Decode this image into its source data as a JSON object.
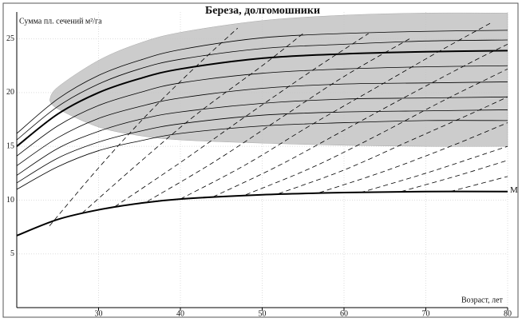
{
  "chart_data": {
    "type": "line",
    "title": "Береза, долгомошники",
    "y_label": "Сумма пл. сечений м²/га",
    "x_label": "Возраст, лет",
    "xlim": [
      20,
      80
    ],
    "ylim": [
      0,
      27.5
    ],
    "xticks": [
      30,
      40,
      50,
      60,
      70,
      80
    ],
    "yticks": [
      5,
      10,
      15,
      20,
      25
    ],
    "grid": true,
    "band": {
      "color": "#c4c4c4",
      "x": [
        24,
        25,
        30,
        35,
        40,
        50,
        60,
        70,
        80
      ],
      "upper": [
        19.3,
        20.5,
        23.0,
        24.6,
        25.6,
        26.7,
        27.2,
        27.4,
        27.4
      ],
      "lower": [
        19.3,
        18.5,
        16.8,
        16.0,
        15.6,
        15.3,
        15.1,
        15.0,
        15.0
      ]
    },
    "x": [
      20,
      25,
      30,
      35,
      40,
      50,
      60,
      70,
      80
    ],
    "series": [
      {
        "color": "#000",
        "width": 2,
        "values": [
          15.0,
          18.0,
          20.0,
          21.3,
          22.2,
          23.2,
          23.6,
          23.8,
          23.9
        ]
      },
      {
        "name": "M",
        "color": "#000",
        "width": 2,
        "values": [
          6.7,
          8.2,
          9.1,
          9.7,
          10.1,
          10.5,
          10.7,
          10.8,
          10.8
        ]
      },
      {
        "color": "#000",
        "width": 0.8,
        "values": [
          16.2,
          19.4,
          21.6,
          23.0,
          24.0,
          25.1,
          25.5,
          25.7,
          25.8
        ]
      },
      {
        "color": "#000",
        "width": 0.8,
        "values": [
          15.6,
          18.7,
          20.8,
          22.2,
          23.1,
          24.1,
          24.5,
          24.8,
          24.9
        ]
      },
      {
        "color": "#000",
        "width": 0.8,
        "values": [
          14.1,
          16.9,
          18.8,
          20.0,
          20.9,
          21.8,
          22.2,
          22.4,
          22.5
        ]
      },
      {
        "color": "#000",
        "width": 0.8,
        "values": [
          13.2,
          15.8,
          17.6,
          18.7,
          19.5,
          20.4,
          20.8,
          20.9,
          21.0
        ]
      },
      {
        "color": "#000",
        "width": 0.8,
        "values": [
          12.3,
          14.8,
          16.4,
          17.5,
          18.2,
          19.0,
          19.4,
          19.5,
          19.6
        ]
      },
      {
        "color": "#000",
        "width": 0.8,
        "values": [
          11.6,
          13.9,
          15.4,
          16.4,
          17.1,
          17.9,
          18.2,
          18.3,
          18.4
        ]
      },
      {
        "color": "#000",
        "width": 0.8,
        "values": [
          11.0,
          13.1,
          14.6,
          15.5,
          16.2,
          16.9,
          17.2,
          17.4,
          17.4
        ]
      }
    ],
    "dashed": [
      {
        "x": [
          24,
          30,
          36,
          42,
          47
        ],
        "values": [
          7.6,
          13,
          18,
          22.5,
          26
        ]
      },
      {
        "x": [
          28,
          35,
          42,
          50,
          55
        ],
        "values": [
          8.8,
          13.5,
          18,
          22.5,
          25.5
        ]
      },
      {
        "x": [
          32,
          40,
          48,
          56,
          63
        ],
        "values": [
          9.4,
          13.5,
          17.8,
          22,
          25.5
        ]
      },
      {
        "x": [
          36,
          44,
          52,
          60,
          68
        ],
        "values": [
          9.9,
          13.5,
          17.5,
          21.5,
          25
        ]
      },
      {
        "x": [
          40,
          48,
          56,
          64,
          72,
          78
        ],
        "values": [
          10.1,
          13.3,
          17,
          20.5,
          24,
          26.5
        ]
      },
      {
        "x": [
          44,
          52,
          60,
          68,
          76,
          80
        ],
        "values": [
          10.3,
          13.2,
          16.5,
          19.8,
          23,
          24.5
        ]
      },
      {
        "x": [
          48,
          56,
          64,
          72,
          80
        ],
        "values": [
          10.5,
          13.0,
          16.0,
          19.2,
          22.2
        ]
      },
      {
        "x": [
          52,
          60,
          68,
          76,
          80
        ],
        "values": [
          10.6,
          12.8,
          15.5,
          18.2,
          19.6
        ]
      },
      {
        "x": [
          57,
          65,
          73,
          80
        ],
        "values": [
          10.7,
          12.7,
          15.0,
          17.2
        ]
      },
      {
        "x": [
          62,
          70,
          78,
          80
        ],
        "values": [
          10.7,
          12.5,
          14.5,
          15.0
        ]
      },
      {
        "x": [
          67,
          74,
          80
        ],
        "values": [
          10.8,
          12.3,
          13.7
        ]
      },
      {
        "x": [
          73,
          80
        ],
        "values": [
          10.8,
          12.2
        ]
      }
    ]
  }
}
